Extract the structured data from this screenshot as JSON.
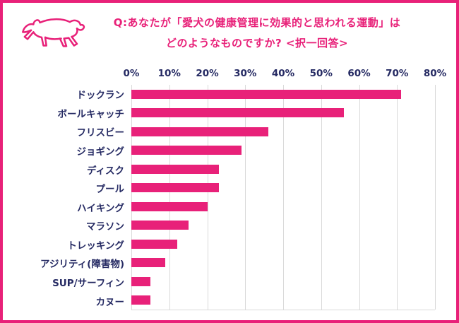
{
  "page": {
    "accent_color": "#e82179",
    "text_color": "#252a63",
    "grid_color": "#d9d9d9",
    "background_color": "#ffffff"
  },
  "icons": {
    "dog": "running-dog-line-art"
  },
  "header": {
    "title_line1": "Q:あなたが「愛犬の健康管理に効果的と思われる運動」は",
    "title_line2": "どのようなものですか? <択一回答>"
  },
  "chart_data": {
    "type": "bar",
    "orientation": "horizontal",
    "title": "あなたが「愛犬の健康管理に効果的と思われる運動」はどのようなものですか?(択一回答)",
    "categories": [
      "ドックラン",
      "ボールキャッチ",
      "フリスビー",
      "ジョギング",
      "ディスク",
      "プール",
      "ハイキング",
      "マラソン",
      "トレッキング",
      "アジリティ(障害物)",
      "SUP/サーフィン",
      "カヌー"
    ],
    "values": [
      71,
      56,
      36,
      29,
      23,
      23,
      20,
      15,
      12,
      9,
      5,
      5
    ],
    "unit": "%",
    "xlim": [
      0,
      80
    ],
    "x_ticks": [
      0,
      10,
      20,
      30,
      40,
      50,
      60,
      70,
      80
    ],
    "x_tick_labels": [
      "0%",
      "10%",
      "20%",
      "30%",
      "40%",
      "50%",
      "60%",
      "70%",
      "80%"
    ],
    "bar_color": "#e82179",
    "grid": true,
    "axis_position": "top",
    "legend": "none"
  }
}
